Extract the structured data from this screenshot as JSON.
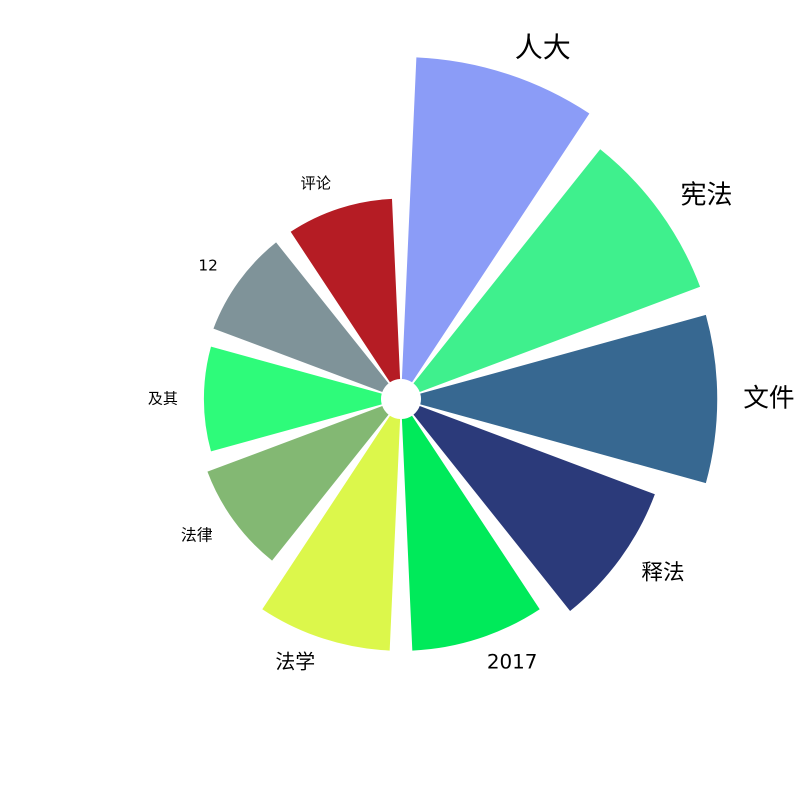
{
  "chart_data": {
    "type": "bar",
    "subtype": "radial-bar",
    "title": "",
    "categories": [
      "人大",
      "宪法",
      "文件",
      "释法",
      "2017",
      "法学",
      "法律",
      "及其",
      "12",
      "评论"
    ],
    "values": [
      100,
      93,
      92,
      78,
      72,
      72,
      58,
      55,
      56,
      56
    ],
    "colors": [
      "#8b9cf7",
      "#3ff08d",
      "#376891",
      "#2b3a7a",
      "#00ea5a",
      "#dcf74b",
      "#83b873",
      "#2efb7a",
      "#7f9399",
      "#b51c24"
    ],
    "direction": "clockwise",
    "start": "top",
    "grid": false,
    "legend": "none"
  }
}
